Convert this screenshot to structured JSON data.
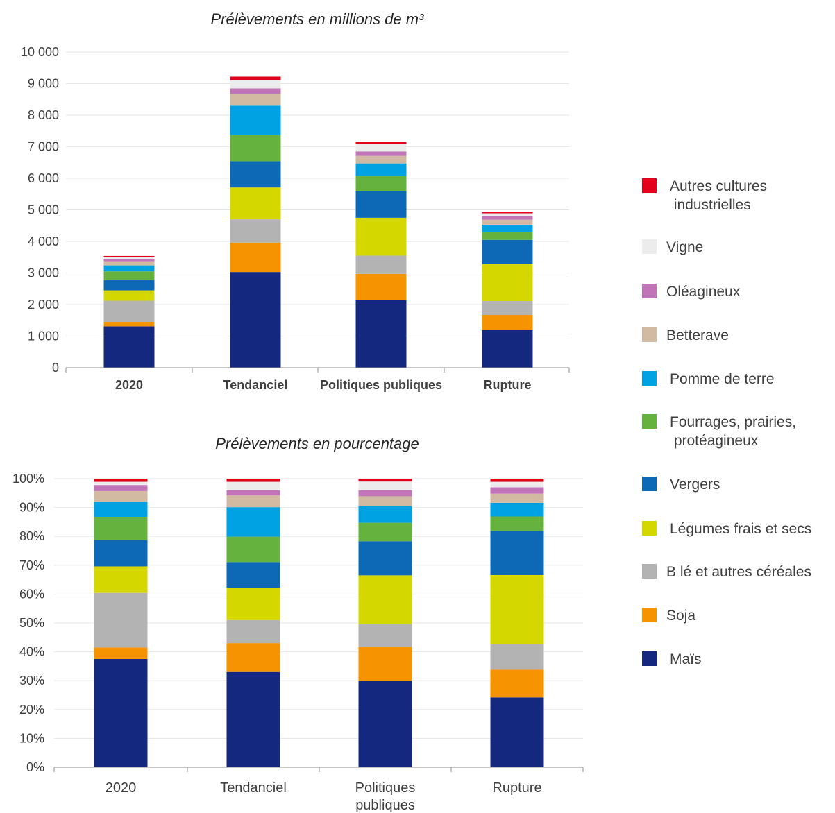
{
  "colors": {
    "Maïs": "#14287f",
    "Soja": "#f59300",
    "Blé": "#b3b3b3",
    "Légumes": "#d4d800",
    "Vergers": "#0d68b5",
    "Fourrages": "#65b33e",
    "Pomme": "#00a2e3",
    "Betterave": "#d2b9a1",
    "Oléagineux": "#c175b8",
    "Vigne": "#ececec",
    "Autres": "#e2001a"
  },
  "legend": {
    "items": [
      {
        "key": "Autres",
        "label_lines": [
          "Autres cultures",
          " industrielles"
        ]
      },
      {
        "key": "Vigne",
        "label_lines": [
          "Vigne"
        ]
      },
      {
        "key": "Oléagineux",
        "label_lines": [
          "Oléagineux"
        ]
      },
      {
        "key": "Betterave",
        "label_lines": [
          "Betterave"
        ]
      },
      {
        "key": "Pomme",
        "label_lines": [
          "Pomme de terre"
        ]
      },
      {
        "key": "Fourrages",
        "label_lines": [
          "Fourrages, prairies,",
          " protéagineux"
        ]
      },
      {
        "key": "Vergers",
        "label_lines": [
          "Vergers"
        ]
      },
      {
        "key": "Légumes",
        "label_lines": [
          "Légumes frais et secs"
        ]
      },
      {
        "key": "Blé",
        "label_lines": [
          "B lé et autres céréales"
        ]
      },
      {
        "key": "Soja",
        "label_lines": [
          "Soja"
        ]
      },
      {
        "key": "Maïs",
        "label_lines": [
          "Maïs"
        ]
      }
    ]
  },
  "chart_data": [
    {
      "type": "bar",
      "stacked": true,
      "title": "Prélèvements en millions de m³",
      "categories": [
        "2020",
        "Tendanciel",
        "Politiques publiques",
        "Rupture"
      ],
      "ylim": [
        0,
        10000
      ],
      "yticks": [
        0,
        1000,
        2000,
        3000,
        4000,
        5000,
        6000,
        7000,
        8000,
        9000,
        10000
      ],
      "ytick_labels": [
        "0",
        "1 000",
        "2 000",
        "3 000",
        "4 000",
        "5 000",
        "6 000",
        "7 000",
        "8 000",
        "9 000",
        "10 000"
      ],
      "series": [
        {
          "name": "Maïs",
          "values": [
            1310,
            3030,
            2140,
            1190
          ]
        },
        {
          "name": "Soja",
          "values": [
            140,
            930,
            830,
            480
          ]
        },
        {
          "name": "Blé et autres céréales",
          "values": [
            670,
            740,
            580,
            440
          ]
        },
        {
          "name": "Légumes frais et secs",
          "values": [
            330,
            1010,
            1200,
            1170
          ]
        },
        {
          "name": "Vergers",
          "values": [
            320,
            830,
            850,
            770
          ]
        },
        {
          "name": "Fourrages, prairies, protéagineux",
          "values": [
            280,
            830,
            470,
            240
          ]
        },
        {
          "name": "Pomme de terre",
          "values": [
            190,
            930,
            400,
            240
          ]
        },
        {
          "name": "Betterave",
          "values": [
            130,
            380,
            240,
            160
          ]
        },
        {
          "name": "Oléagineux",
          "values": [
            70,
            170,
            140,
            110
          ]
        },
        {
          "name": "Vigne",
          "values": [
            60,
            260,
            240,
            90
          ]
        },
        {
          "name": "Autres cultures industrielles",
          "values": [
            40,
            110,
            60,
            40
          ]
        }
      ]
    },
    {
      "type": "bar",
      "stacked": true,
      "title": "Prélèvements en pourcentage",
      "categories": [
        "2020",
        "Tendanciel",
        "Politiques publiques",
        "Rupture"
      ],
      "ylim": [
        0,
        100
      ],
      "yticks": [
        0,
        10,
        20,
        30,
        40,
        50,
        60,
        70,
        80,
        90,
        100
      ],
      "ytick_labels": [
        "0%",
        "10%",
        "20%",
        "30%",
        "40%",
        "50%",
        "60%",
        "70%",
        "80%",
        "90%",
        "100%"
      ],
      "series": [
        {
          "name": "Maïs",
          "values": [
            37.5,
            33,
            30,
            24.2
          ]
        },
        {
          "name": "Soja",
          "values": [
            4,
            10,
            11.7,
            9.6
          ]
        },
        {
          "name": "Blé et autres céréales",
          "values": [
            18.9,
            8,
            8,
            8.9
          ]
        },
        {
          "name": "Légumes frais et secs",
          "values": [
            9.2,
            11.2,
            16.8,
            23.9
          ]
        },
        {
          "name": "Vergers",
          "values": [
            9.1,
            8.9,
            11.8,
            15.3
          ]
        },
        {
          "name": "Fourrages, prairies, protéagineux",
          "values": [
            8,
            8.8,
            6.4,
            5
          ]
        },
        {
          "name": "Pomme de terre",
          "values": [
            5.3,
            10.2,
            5.7,
            4.7
          ]
        },
        {
          "name": "Betterave",
          "values": [
            3.7,
            4.1,
            3.5,
            3.2
          ]
        },
        {
          "name": "Oléagineux",
          "values": [
            2.1,
            1.8,
            2.1,
            2.2
          ]
        },
        {
          "name": "Vigne",
          "values": [
            1.1,
            2.9,
            3,
            1.9
          ]
        },
        {
          "name": "Autres cultures industrielles",
          "values": [
            1.1,
            1.1,
            1,
            1.1
          ]
        }
      ]
    }
  ]
}
